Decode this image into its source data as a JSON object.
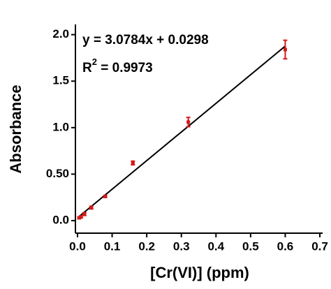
{
  "chart_data": {
    "type": "scatter",
    "x_label": "[Cr(VI)] (ppm)",
    "y_label": "Absorbance",
    "x": [
      0.005,
      0.01,
      0.02,
      0.04,
      0.08,
      0.16,
      0.32,
      0.6
    ],
    "values": [
      0.03,
      0.04,
      0.07,
      0.14,
      0.26,
      0.62,
      1.06,
      1.84
    ],
    "errors": [
      0.01,
      0.01,
      0.015,
      0.015,
      0.01,
      0.02,
      0.05,
      0.1
    ],
    "color": "#d21a1a",
    "trendline": {
      "equation": "y = 3.0784x + 0.0298",
      "slope": 3.0784,
      "intercept": 0.0298,
      "color": "#000000"
    },
    "r_squared_label": {
      "base": "R",
      "superscript": "2",
      "text": " = 0.9973"
    },
    "xlim": [
      -0.006,
      0.708
    ],
    "ylim": [
      -0.135,
      2.11
    ],
    "xticks": [
      {
        "value": 0,
        "label": "0.0"
      },
      0.1,
      0.2,
      0.3,
      0.4,
      0.5,
      0.6,
      0.7
    ],
    "yticks": [
      {
        "value": 0,
        "label": "0.0"
      },
      {
        "value": 0.5,
        "label": "0.50"
      },
      {
        "value": 1,
        "label": "1.0"
      },
      1.5,
      {
        "value": 2,
        "label": "2.0"
      }
    ],
    "grid": false
  }
}
